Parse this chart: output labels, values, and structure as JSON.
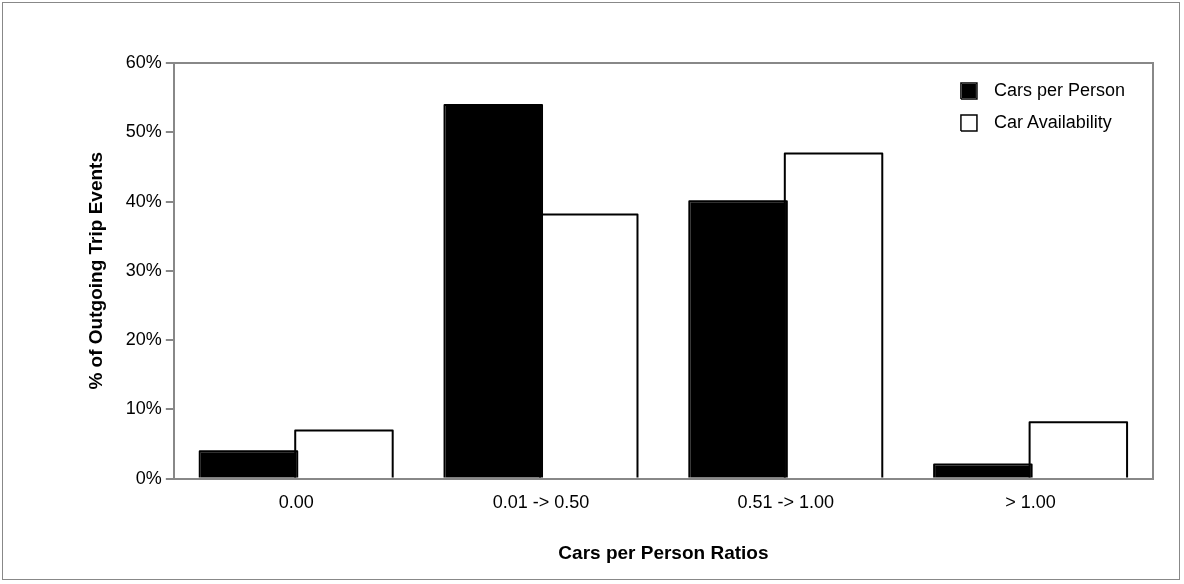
{
  "chart_data": {
    "type": "bar",
    "xlabel": "Cars per Person Ratios",
    "ylabel": "% of Outgoing Trip Events",
    "categories": [
      "0.00",
      "0.01 -> 0.50",
      "0.51 -> 1.00",
      "> 1.00"
    ],
    "series": [
      {
        "name": "Cars per Person",
        "color": "#000000",
        "values": [
          3.8,
          53.8,
          39.9,
          1.9
        ]
      },
      {
        "name": "Car Availability",
        "color": "#ffffff",
        "values": [
          6.8,
          38.0,
          46.8,
          8.0
        ]
      }
    ],
    "ylim": [
      0,
      60
    ],
    "yticks": [
      {
        "value": 0,
        "label": "0%"
      },
      {
        "value": 10,
        "label": "10%"
      },
      {
        "value": 20,
        "label": "20%"
      },
      {
        "value": 30,
        "label": "30%"
      },
      {
        "value": 40,
        "label": "40%"
      },
      {
        "value": 50,
        "label": "50%"
      },
      {
        "value": 60,
        "label": "60%"
      }
    ],
    "grid": false,
    "legend": "top right"
  }
}
